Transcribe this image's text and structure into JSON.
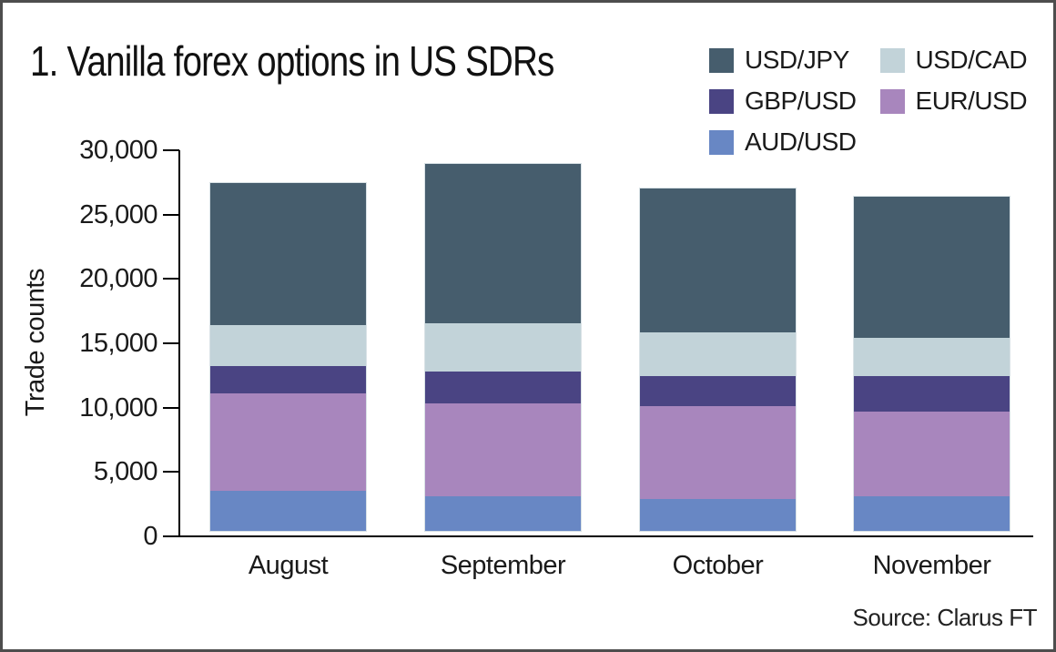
{
  "chart_data": {
    "type": "bar",
    "stacked": true,
    "title": "1. Vanilla forex options in US SDRs",
    "ylabel": "Trade counts",
    "xlabel": "",
    "source_note": "Source: Clarus FT",
    "grid": false,
    "legend_position": "top-right",
    "legend_order": [
      "USD/JPY",
      "USD/CAD",
      "GBP/USD",
      "EUR/USD",
      "AUD/USD"
    ],
    "ylim": [
      0,
      30000
    ],
    "yticks": [
      0,
      5000,
      10000,
      15000,
      20000,
      25000,
      30000
    ],
    "ytick_labels": [
      "0",
      "5,000",
      "10,000",
      "15,000",
      "20,000",
      "25,000",
      "30,000"
    ],
    "categories": [
      "August",
      "September",
      "October",
      "November"
    ],
    "series": [
      {
        "name": "AUD/USD",
        "color": "#6887c4",
        "values": [
          3100,
          2700,
          2500,
          2700
        ]
      },
      {
        "name": "EUR/USD",
        "color": "#a886bd",
        "values": [
          7600,
          7200,
          7200,
          6600
        ]
      },
      {
        "name": "GBP/USD",
        "color": "#4a4483",
        "values": [
          2100,
          2500,
          2300,
          2700
        ]
      },
      {
        "name": "USD/CAD",
        "color": "#c2d3d9",
        "values": [
          3200,
          3700,
          3400,
          3000
        ]
      },
      {
        "name": "USD/JPY",
        "color": "#465d6d",
        "values": [
          11000,
          12400,
          11200,
          11000
        ]
      }
    ],
    "stack_totals": [
      27000,
      28500,
      26600,
      26000
    ]
  }
}
